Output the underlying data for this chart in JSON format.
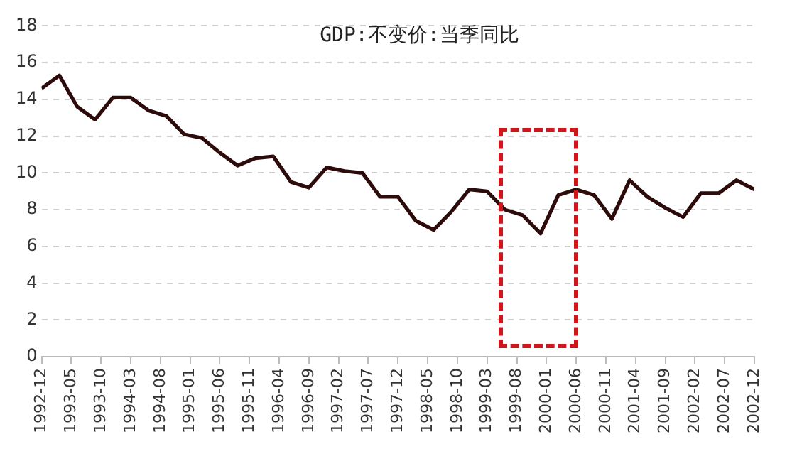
{
  "chart_data": {
    "type": "line",
    "title": "GDP:不变价:当季同比",
    "x": [
      "1992-12",
      "1993-03",
      "1993-06",
      "1993-09",
      "1993-12",
      "1994-03",
      "1994-06",
      "1994-09",
      "1994-12",
      "1995-03",
      "1995-06",
      "1995-09",
      "1995-12",
      "1996-03",
      "1996-06",
      "1996-09",
      "1996-12",
      "1997-03",
      "1997-06",
      "1997-09",
      "1997-12",
      "1998-03",
      "1998-06",
      "1998-09",
      "1998-12",
      "1999-03",
      "1999-06",
      "1999-09",
      "1999-12",
      "2000-03",
      "2000-06",
      "2000-09",
      "2000-12",
      "2001-03",
      "2001-06",
      "2001-09",
      "2001-12",
      "2002-03",
      "2002-06",
      "2002-09",
      "2002-12"
    ],
    "series": [
      {
        "color": "#2e0b0b",
        "values": [
          14.6,
          15.3,
          13.6,
          12.9,
          14.1,
          14.1,
          13.4,
          13.1,
          12.1,
          11.9,
          11.1,
          10.4,
          10.8,
          10.9,
          9.5,
          9.2,
          10.3,
          10.1,
          10.0,
          8.7,
          8.7,
          7.4,
          6.9,
          7.9,
          9.1,
          9.0,
          8.0,
          7.7,
          6.7,
          8.8,
          9.1,
          8.8,
          7.5,
          9.6,
          8.7,
          8.1,
          7.6,
          8.9,
          8.9,
          9.6,
          9.1
        ]
      }
    ],
    "xlim": [
      "1992-12",
      "2002-12"
    ],
    "xticks": [
      "1992-12",
      "1993-05",
      "1993-10",
      "1994-03",
      "1994-08",
      "1995-01",
      "1995-06",
      "1995-11",
      "1996-04",
      "1996-09",
      "1997-02",
      "1997-07",
      "1997-12",
      "1998-05",
      "1998-10",
      "1999-03",
      "1999-08",
      "2000-01",
      "2000-06",
      "2000-11",
      "2001-04",
      "2001-09",
      "2002-02",
      "2002-07",
      "2002-12"
    ],
    "ylim": [
      0,
      18
    ],
    "yticks": [
      0,
      2,
      4,
      6,
      8,
      10,
      12,
      14,
      16,
      18
    ],
    "grid": "y",
    "legend": false,
    "marker": "none",
    "line_style": "solid"
  }
}
